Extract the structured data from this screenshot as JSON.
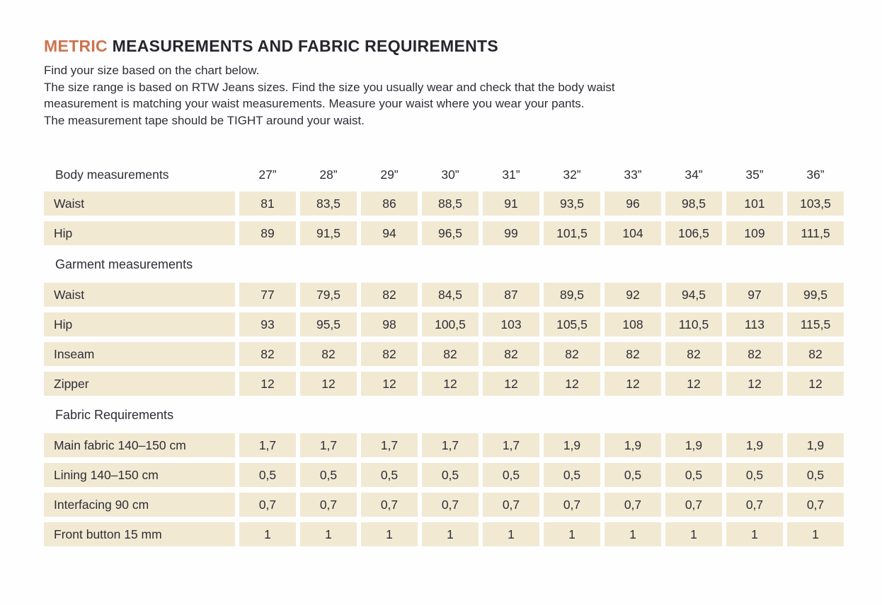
{
  "page": {
    "title_accent": "METRIC",
    "title_rest": "MEASUREMENTS AND FABRIC REQUIREMENTS",
    "intro": [
      "Find your size based on the chart below.",
      "The size range is based on RTW Jeans sizes. Find the size you usually wear and check that the body waist measurement is matching your waist measurements. Measure your waist where you wear your pants.",
      "The measurement tape should be TIGHT around your waist."
    ]
  },
  "colors": {
    "accent": "#cd734e",
    "cell_bg": "#f2e9d3",
    "text": "#2e2e36"
  },
  "table": {
    "header_label": "Body measurements",
    "sizes": [
      "27”",
      "28”",
      "29”",
      "30”",
      "31”",
      "32”",
      "33”",
      "34”",
      "35”",
      "36”"
    ],
    "sections": [
      {
        "title": null,
        "rows": [
          {
            "label": "Waist",
            "values": [
              "81",
              "83,5",
              "86",
              "88,5",
              "91",
              "93,5",
              "96",
              "98,5",
              "101",
              "103,5"
            ]
          },
          {
            "label": "Hip",
            "values": [
              "89",
              "91,5",
              "94",
              "96,5",
              "99",
              "101,5",
              "104",
              "106,5",
              "109",
              "111,5"
            ]
          }
        ]
      },
      {
        "title": "Garment measurements",
        "rows": [
          {
            "label": "Waist",
            "values": [
              "77",
              "79,5",
              "82",
              "84,5",
              "87",
              "89,5",
              "92",
              "94,5",
              "97",
              "99,5"
            ]
          },
          {
            "label": "Hip",
            "values": [
              "93",
              "95,5",
              "98",
              "100,5",
              "103",
              "105,5",
              "108",
              "110,5",
              "113",
              "115,5"
            ]
          },
          {
            "label": "Inseam",
            "values": [
              "82",
              "82",
              "82",
              "82",
              "82",
              "82",
              "82",
              "82",
              "82",
              "82"
            ]
          },
          {
            "label": "Zipper",
            "values": [
              "12",
              "12",
              "12",
              "12",
              "12",
              "12",
              "12",
              "12",
              "12",
              "12"
            ]
          }
        ]
      },
      {
        "title": "Fabric Requirements",
        "rows": [
          {
            "label": "Main fabric 140–150 cm",
            "values": [
              "1,7",
              "1,7",
              "1,7",
              "1,7",
              "1,7",
              "1,9",
              "1,9",
              "1,9",
              "1,9",
              "1,9"
            ]
          },
          {
            "label": "Lining 140–150 cm",
            "values": [
              "0,5",
              "0,5",
              "0,5",
              "0,5",
              "0,5",
              "0,5",
              "0,5",
              "0,5",
              "0,5",
              "0,5"
            ]
          },
          {
            "label": "Interfacing 90 cm",
            "values": [
              "0,7",
              "0,7",
              "0,7",
              "0,7",
              "0,7",
              "0,7",
              "0,7",
              "0,7",
              "0,7",
              "0,7"
            ]
          },
          {
            "label": "Front button 15 mm",
            "values": [
              "1",
              "1",
              "1",
              "1",
              "1",
              "1",
              "1",
              "1",
              "1",
              "1"
            ]
          }
        ]
      }
    ]
  }
}
